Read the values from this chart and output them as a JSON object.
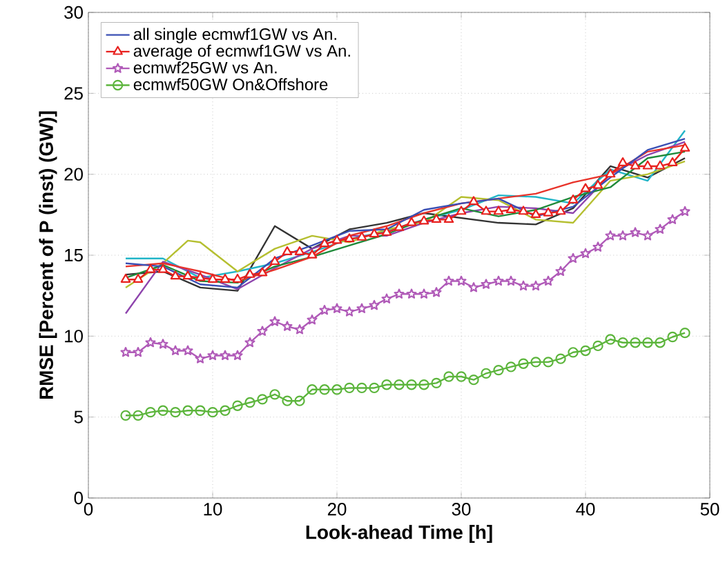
{
  "chart_data": {
    "type": "line",
    "xlabel": "Look-ahead Time [h]",
    "ylabel": "RMSE  [Percent of P (inst) (GW)]",
    "xlim": [
      0,
      50
    ],
    "xticks": [
      0,
      10,
      20,
      30,
      40,
      50
    ],
    "ylim": [
      0,
      30
    ],
    "yticks": [
      0,
      5,
      10,
      15,
      20,
      25,
      30
    ],
    "grid": true,
    "legend": "top left",
    "line_style": "solid",
    "x": [
      3,
      4,
      5,
      6,
      7,
      8,
      9,
      10,
      11,
      12,
      13,
      14,
      15,
      16,
      17,
      18,
      19,
      20,
      21,
      22,
      23,
      24,
      25,
      26,
      27,
      28,
      29,
      30,
      31,
      32,
      33,
      34,
      35,
      36,
      37,
      38,
      39,
      40,
      41,
      42,
      43,
      44,
      45,
      46,
      47,
      48
    ],
    "series": [
      {
        "color": "#333333",
        "marker": "none",
        "x": [
          3,
          6,
          9,
          12,
          15,
          18,
          21,
          24,
          27,
          30,
          33,
          36,
          39,
          42,
          45,
          48
        ],
        "values": [
          13.8,
          14.0,
          13.0,
          12.8,
          16.8,
          15.4,
          16.6,
          17.0,
          17.6,
          17.3,
          17.0,
          16.9,
          17.9,
          20.5,
          19.8,
          21.0
        ]
      },
      {
        "color": "#22b5c8",
        "marker": "none",
        "x": [
          3,
          6,
          9,
          12,
          15,
          18,
          21,
          24,
          27,
          30,
          33,
          36,
          39,
          42,
          45,
          48
        ],
        "values": [
          14.8,
          14.8,
          13.6,
          14.0,
          14.5,
          15.2,
          16.0,
          16.5,
          17.2,
          17.8,
          18.7,
          18.6,
          18.2,
          20.3,
          19.6,
          22.7
        ]
      },
      {
        "color": "#b5bf30",
        "marker": "none",
        "x": [
          3,
          6,
          8,
          9,
          12,
          15,
          18,
          21,
          24,
          27,
          30,
          33,
          36,
          39,
          42,
          45,
          48
        ],
        "values": [
          13.0,
          14.5,
          15.9,
          15.8,
          14.0,
          15.4,
          16.2,
          15.8,
          16.6,
          17.0,
          18.6,
          18.4,
          17.2,
          17.0,
          19.6,
          20.0,
          20.8
        ]
      },
      {
        "color": "#8e44ad",
        "marker": "none",
        "x": [
          3,
          6,
          9,
          12,
          15,
          18,
          21,
          24,
          27,
          30,
          33,
          36,
          39,
          42,
          45,
          48
        ],
        "values": [
          11.4,
          14.6,
          13.8,
          12.9,
          14.2,
          15.4,
          16.2,
          16.2,
          17.0,
          17.6,
          18.0,
          17.9,
          17.6,
          20.0,
          21.2,
          22.0
        ]
      },
      {
        "color": "#1f8a3a",
        "marker": "none",
        "x": [
          3,
          6,
          9,
          12,
          15,
          18,
          21,
          24,
          27,
          30,
          33,
          36,
          39,
          42,
          45,
          48
        ],
        "values": [
          13.6,
          14.4,
          13.4,
          13.3,
          14.3,
          14.9,
          15.6,
          16.3,
          17.2,
          17.9,
          17.4,
          17.8,
          18.6,
          19.2,
          21.0,
          21.4
        ]
      },
      {
        "color": "#e8332a",
        "marker": "none",
        "x": [
          3,
          6,
          9,
          12,
          15,
          18,
          21,
          24,
          27,
          30,
          33,
          36,
          39,
          42,
          45,
          48
        ],
        "values": [
          14.3,
          14.5,
          14.0,
          13.4,
          14.1,
          14.9,
          16.2,
          16.8,
          17.6,
          18.2,
          18.5,
          18.8,
          19.5,
          20.0,
          21.4,
          21.8
        ]
      },
      {
        "name": "all single ecmwf1GW vs An.",
        "color": "#3a4fb4",
        "marker": "none",
        "x": [
          3,
          6,
          9,
          12,
          15,
          18,
          21,
          24,
          27,
          30,
          33,
          36,
          39,
          42,
          45,
          48
        ],
        "values": [
          14.5,
          14.3,
          13.2,
          13.0,
          14.8,
          15.6,
          16.5,
          16.6,
          17.8,
          18.2,
          18.5,
          17.4,
          18.0,
          19.8,
          21.5,
          22.2
        ]
      },
      {
        "name": "average of ecmwf1GW vs An.",
        "color": "#e8201e",
        "marker": "triangle",
        "values": [
          13.5,
          13.5,
          14.1,
          14.1,
          13.7,
          13.7,
          13.6,
          13.5,
          13.5,
          13.5,
          13.8,
          13.9,
          14.6,
          15.2,
          15.2,
          15.0,
          15.7,
          15.9,
          16.0,
          16.1,
          16.3,
          16.4,
          16.7,
          17.0,
          17.1,
          17.2,
          17.2,
          17.7,
          18.3,
          17.7,
          17.7,
          17.8,
          17.7,
          17.5,
          17.6,
          17.7,
          18.4,
          19.1,
          19.3,
          20.0,
          20.7,
          20.5,
          20.5,
          20.5,
          20.7,
          21.6
        ]
      },
      {
        "name": "ecmwf25GW vs An.",
        "color": "#b05ab8",
        "marker": "star",
        "values": [
          9.0,
          9.0,
          9.6,
          9.5,
          9.1,
          9.1,
          8.6,
          8.8,
          8.8,
          8.8,
          9.6,
          10.3,
          10.9,
          10.6,
          10.4,
          11.0,
          11.6,
          11.7,
          11.5,
          11.7,
          11.9,
          12.3,
          12.6,
          12.6,
          12.6,
          12.7,
          13.4,
          13.4,
          13.0,
          13.2,
          13.4,
          13.4,
          13.1,
          13.1,
          13.4,
          14.0,
          14.8,
          15.1,
          15.5,
          16.2,
          16.2,
          16.4,
          16.2,
          16.6,
          17.2,
          17.7
        ]
      },
      {
        "name": "ecmwf50GW On&Offshore",
        "color": "#5cb53c",
        "marker": "circle",
        "values": [
          5.1,
          5.1,
          5.3,
          5.4,
          5.3,
          5.4,
          5.4,
          5.3,
          5.4,
          5.7,
          5.9,
          6.1,
          6.4,
          6.0,
          6.0,
          6.7,
          6.7,
          6.7,
          6.8,
          6.8,
          6.8,
          7.0,
          7.0,
          7.0,
          7.0,
          7.1,
          7.5,
          7.5,
          7.3,
          7.7,
          7.9,
          8.1,
          8.3,
          8.4,
          8.4,
          8.6,
          9.0,
          9.1,
          9.4,
          9.8,
          9.6,
          9.6,
          9.6,
          9.6,
          9.95,
          10.2
        ]
      }
    ]
  }
}
